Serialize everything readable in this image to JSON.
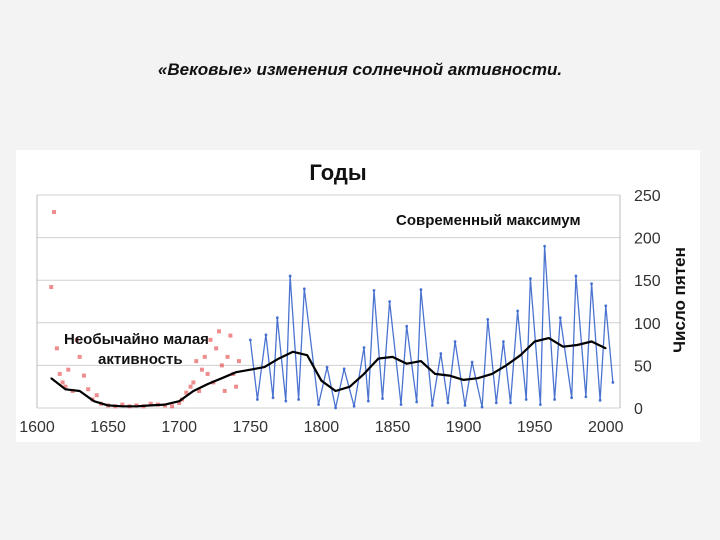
{
  "slide": {
    "title": "«Вековые» изменения солнечной активности."
  },
  "chart_data": {
    "type": "line",
    "title": "Годы",
    "xlabel": "",
    "ylabel": "Число пятен",
    "xlim": [
      1600,
      2010
    ],
    "ylim": [
      0,
      250
    ],
    "x_ticks": [
      "1600",
      "1650",
      "1700",
      "1750",
      "1800",
      "1850",
      "1900",
      "1950",
      "2000"
    ],
    "y_ticks": [
      "0",
      "50",
      "100",
      "150",
      "200",
      "250"
    ],
    "colors": {
      "telescopic": "#2b5cc9",
      "trend": "#000000",
      "early": "#e03030"
    },
    "annotations": {
      "low_activity": [
        "Необычайно малая",
        "активность"
      ],
      "modern_max": "Современный максимум"
    },
    "series": [
      {
        "values": [
          [
            1750,
            80
          ],
          [
            1755,
            10
          ],
          [
            1761,
            86
          ],
          [
            1766,
            12
          ],
          [
            1769,
            106
          ],
          [
            1775,
            8
          ],
          [
            1778,
            155
          ],
          [
            1784,
            10
          ],
          [
            1788,
            140
          ],
          [
            1798,
            4
          ],
          [
            1804,
            48
          ],
          [
            1810,
            0
          ],
          [
            1816,
            46
          ],
          [
            1823,
            2
          ],
          [
            1830,
            71
          ],
          [
            1833,
            8
          ],
          [
            1837,
            138
          ],
          [
            1843,
            11
          ],
          [
            1848,
            125
          ],
          [
            1856,
            4
          ],
          [
            1860,
            96
          ],
          [
            1867,
            7
          ],
          [
            1870,
            139
          ],
          [
            1878,
            3
          ],
          [
            1884,
            64
          ],
          [
            1889,
            6
          ],
          [
            1894,
            78
          ],
          [
            1901,
            3
          ],
          [
            1906,
            54
          ],
          [
            1913,
            1
          ],
          [
            1917,
            104
          ],
          [
            1923,
            6
          ],
          [
            1928,
            78
          ],
          [
            1933,
            6
          ],
          [
            1938,
            114
          ],
          [
            1944,
            10
          ],
          [
            1947,
            152
          ],
          [
            1954,
            4
          ],
          [
            1957,
            190
          ],
          [
            1964,
            10
          ],
          [
            1968,
            106
          ],
          [
            1976,
            12
          ],
          [
            1979,
            155
          ],
          [
            1986,
            13
          ],
          [
            1990,
            146
          ],
          [
            1996,
            9
          ],
          [
            2000,
            120
          ],
          [
            2005,
            30
          ]
        ]
      },
      {
        "values": [
          [
            1610,
            35
          ],
          [
            1620,
            22
          ],
          [
            1630,
            20
          ],
          [
            1640,
            8
          ],
          [
            1650,
            3
          ],
          [
            1660,
            2
          ],
          [
            1670,
            2
          ],
          [
            1680,
            3
          ],
          [
            1690,
            4
          ],
          [
            1700,
            8
          ],
          [
            1710,
            20
          ],
          [
            1720,
            28
          ],
          [
            1730,
            35
          ],
          [
            1740,
            42
          ],
          [
            1750,
            45
          ],
          [
            1760,
            48
          ],
          [
            1770,
            58
          ],
          [
            1780,
            66
          ],
          [
            1790,
            62
          ],
          [
            1800,
            32
          ],
          [
            1810,
            20
          ],
          [
            1820,
            25
          ],
          [
            1830,
            40
          ],
          [
            1840,
            58
          ],
          [
            1850,
            60
          ],
          [
            1860,
            52
          ],
          [
            1870,
            55
          ],
          [
            1880,
            40
          ],
          [
            1890,
            38
          ],
          [
            1900,
            33
          ],
          [
            1910,
            35
          ],
          [
            1920,
            40
          ],
          [
            1930,
            50
          ],
          [
            1940,
            62
          ],
          [
            1950,
            78
          ],
          [
            1960,
            82
          ],
          [
            1970,
            72
          ],
          [
            1980,
            74
          ],
          [
            1990,
            78
          ],
          [
            2000,
            70
          ]
        ]
      },
      {
        "values": [
          [
            1610,
            142
          ],
          [
            1612,
            230
          ],
          [
            1614,
            70
          ],
          [
            1616,
            40
          ],
          [
            1618,
            30
          ],
          [
            1620,
            25
          ],
          [
            1622,
            45
          ],
          [
            1625,
            20
          ],
          [
            1628,
            80
          ],
          [
            1630,
            60
          ],
          [
            1633,
            38
          ],
          [
            1636,
            22
          ],
          [
            1639,
            10
          ],
          [
            1642,
            15
          ],
          [
            1645,
            5
          ],
          [
            1650,
            3
          ],
          [
            1655,
            2
          ],
          [
            1660,
            4
          ],
          [
            1665,
            2
          ],
          [
            1670,
            3
          ],
          [
            1675,
            2
          ],
          [
            1680,
            5
          ],
          [
            1685,
            4
          ],
          [
            1690,
            3
          ],
          [
            1695,
            2
          ],
          [
            1700,
            6
          ],
          [
            1702,
            10
          ],
          [
            1705,
            18
          ],
          [
            1708,
            25
          ],
          [
            1710,
            30
          ],
          [
            1712,
            55
          ],
          [
            1714,
            20
          ],
          [
            1716,
            45
          ],
          [
            1718,
            60
          ],
          [
            1720,
            40
          ],
          [
            1722,
            80
          ],
          [
            1724,
            30
          ],
          [
            1726,
            70
          ],
          [
            1728,
            90
          ],
          [
            1730,
            50
          ],
          [
            1732,
            20
          ],
          [
            1734,
            60
          ],
          [
            1736,
            85
          ],
          [
            1738,
            40
          ],
          [
            1740,
            25
          ],
          [
            1742,
            55
          ]
        ]
      }
    ]
  }
}
